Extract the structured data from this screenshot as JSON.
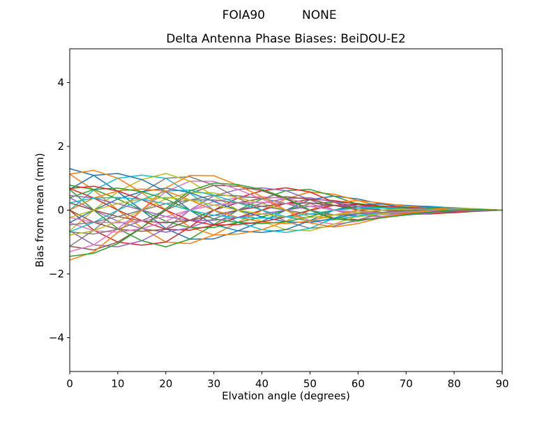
{
  "chart_data": {
    "type": "line",
    "suptitle": [
      "FOIA90",
      "NONE"
    ],
    "title": "Delta Antenna Phase Biases: BeiDOU-E2",
    "xlabel": "Elvation angle (degrees)",
    "ylabel": "Bias from mean (mm)",
    "xlim": [
      0,
      90
    ],
    "ylim": [
      -5.06,
      5.06
    ],
    "xticks": [
      0,
      10,
      20,
      30,
      40,
      50,
      60,
      70,
      80,
      90
    ],
    "yticks": [
      -4,
      -2,
      0,
      2,
      4
    ],
    "grid": false,
    "legend": false,
    "axis_color": "#000000",
    "background": "#ffffff",
    "palette": [
      "#1f77b4",
      "#ff7f0e",
      "#2ca02c",
      "#d62728",
      "#9467bd",
      "#8c564b",
      "#e377c2",
      "#7f7f7f",
      "#bcbd22",
      "#17becf"
    ],
    "x": [
      0,
      5,
      10,
      15,
      20,
      25,
      30,
      35,
      40,
      45,
      50,
      55,
      60,
      65,
      70,
      75,
      80,
      85,
      90
    ],
    "series": [
      {
        "color": "#1f77b4",
        "values": [
          1.3,
          1.09,
          0.58,
          0.0,
          -0.58,
          -0.91,
          -0.9,
          -0.65,
          -0.35,
          0.0,
          0.33,
          0.44,
          0.35,
          0.19,
          0.08,
          0.0,
          -0.04,
          -0.03,
          0.0
        ]
      },
      {
        "color": "#ff7f0e",
        "values": [
          1.13,
          0.63,
          0.0,
          -0.55,
          -1.0,
          -1.05,
          -0.78,
          -0.38,
          0.0,
          0.35,
          0.57,
          0.5,
          0.3,
          0.11,
          0.0,
          -0.06,
          -0.07,
          -0.04,
          0.0
        ]
      },
      {
        "color": "#2ca02c",
        "values": [
          0.65,
          0.0,
          -0.58,
          -0.96,
          -1.15,
          -0.91,
          -0.45,
          0.0,
          0.35,
          0.61,
          0.65,
          0.44,
          0.18,
          0.0,
          -0.08,
          -0.1,
          -0.08,
          -0.03,
          0.0
        ]
      },
      {
        "color": "#d62728",
        "values": [
          0.0,
          -0.63,
          -1.0,
          -1.1,
          -1.0,
          -0.53,
          0.0,
          0.38,
          0.61,
          0.7,
          0.57,
          0.25,
          0.0,
          -0.11,
          -0.13,
          -0.12,
          -0.07,
          -0.02,
          0.0
        ]
      },
      {
        "color": "#9467bd",
        "values": [
          -0.65,
          -1.09,
          -1.15,
          -0.96,
          -0.58,
          0.0,
          0.45,
          0.65,
          0.7,
          0.61,
          0.33,
          0.0,
          -0.18,
          -0.19,
          -0.15,
          -0.1,
          -0.04,
          0.0,
          0.0
        ]
      },
      {
        "color": "#8c564b",
        "values": [
          -1.13,
          -1.25,
          -1.0,
          -0.55,
          0.0,
          0.53,
          0.78,
          0.75,
          0.61,
          0.35,
          0.0,
          -0.25,
          -0.3,
          -0.22,
          -0.13,
          -0.06,
          0.0,
          0.02,
          0.0
        ]
      },
      {
        "color": "#e377c2",
        "values": [
          -1.3,
          -1.09,
          -0.58,
          0.0,
          0.58,
          0.91,
          0.9,
          0.65,
          0.35,
          0.0,
          -0.33,
          -0.44,
          -0.35,
          -0.19,
          -0.08,
          0.0,
          0.04,
          0.03,
          0.0
        ]
      },
      {
        "color": "#7f7f7f",
        "values": [
          -1.13,
          -0.63,
          0.0,
          0.55,
          1.0,
          1.05,
          0.78,
          0.38,
          0.0,
          -0.35,
          -0.57,
          -0.5,
          -0.3,
          -0.11,
          0.0,
          0.06,
          0.07,
          0.04,
          0.0
        ]
      },
      {
        "color": "#bcbd22",
        "values": [
          -0.65,
          0.0,
          0.58,
          0.96,
          1.15,
          0.91,
          0.45,
          0.0,
          -0.35,
          -0.61,
          -0.65,
          -0.44,
          -0.18,
          0.0,
          0.08,
          0.1,
          0.08,
          0.03,
          0.0
        ]
      },
      {
        "color": "#17becf",
        "values": [
          0.0,
          0.63,
          1.0,
          1.1,
          1.0,
          0.53,
          0.0,
          -0.38,
          -0.61,
          -0.7,
          -0.57,
          -0.25,
          0.0,
          0.11,
          0.13,
          0.12,
          0.07,
          0.02,
          0.0
        ]
      },
      {
        "color": "#1f77b4",
        "values": [
          0.65,
          1.09,
          1.15,
          0.96,
          0.58,
          0.0,
          -0.45,
          -0.65,
          -0.7,
          -0.61,
          -0.33,
          0.0,
          0.18,
          0.19,
          0.15,
          0.1,
          0.04,
          0.0,
          0.0
        ]
      },
      {
        "color": "#ff7f0e",
        "values": [
          1.13,
          1.25,
          1.0,
          0.55,
          0.0,
          -0.53,
          -0.78,
          -0.75,
          -0.61,
          -0.35,
          0.0,
          0.25,
          0.3,
          0.22,
          0.13,
          0.06,
          0.0,
          -0.02,
          0.0
        ]
      },
      {
        "color": "#2ca02c",
        "values": [
          0.78,
          0.65,
          0.35,
          0.0,
          -0.35,
          -0.55,
          -0.54,
          -0.39,
          -0.21,
          0.0,
          0.2,
          0.26,
          0.21,
          0.11,
          0.05,
          0.0,
          -0.02,
          -0.02,
          0.0
        ]
      },
      {
        "color": "#d62728",
        "values": [
          0.68,
          0.38,
          0.0,
          -0.33,
          -0.6,
          -0.63,
          -0.47,
          -0.23,
          0.0,
          0.21,
          0.34,
          0.3,
          0.18,
          0.07,
          0.0,
          -0.04,
          -0.04,
          -0.02,
          0.0
        ]
      },
      {
        "color": "#9467bd",
        "values": [
          0.39,
          0.0,
          -0.35,
          -0.58,
          -0.69,
          -0.55,
          -0.27,
          0.0,
          0.21,
          0.37,
          0.39,
          0.26,
          0.11,
          0.0,
          -0.05,
          -0.06,
          -0.05,
          -0.02,
          0.0
        ]
      },
      {
        "color": "#8c564b",
        "values": [
          0.0,
          -0.38,
          -0.6,
          -0.66,
          -0.6,
          -0.32,
          0.0,
          0.23,
          0.37,
          0.42,
          0.34,
          0.15,
          0.0,
          -0.07,
          -0.08,
          -0.07,
          -0.04,
          -0.01,
          0.0
        ]
      },
      {
        "color": "#e377c2",
        "values": [
          -0.39,
          -0.65,
          -0.69,
          -0.58,
          -0.35,
          0.0,
          0.27,
          0.39,
          0.42,
          0.37,
          0.2,
          0.0,
          -0.11,
          -0.11,
          -0.09,
          -0.06,
          -0.02,
          0.0,
          0.0
        ]
      },
      {
        "color": "#7f7f7f",
        "values": [
          -0.68,
          -0.75,
          -0.6,
          -0.33,
          0.0,
          0.32,
          0.47,
          0.45,
          0.37,
          0.21,
          0.0,
          -0.15,
          -0.18,
          -0.13,
          -0.08,
          -0.04,
          0.0,
          0.01,
          0.0
        ]
      },
      {
        "color": "#bcbd22",
        "values": [
          -0.78,
          -0.65,
          -0.35,
          0.0,
          0.35,
          0.55,
          0.54,
          0.39,
          0.21,
          0.0,
          -0.2,
          -0.26,
          -0.21,
          -0.11,
          -0.05,
          0.0,
          0.02,
          0.02,
          0.0
        ]
      },
      {
        "color": "#17becf",
        "values": [
          -0.68,
          -0.38,
          0.0,
          0.33,
          0.6,
          0.63,
          0.47,
          0.23,
          0.0,
          -0.21,
          -0.34,
          -0.3,
          -0.18,
          -0.07,
          0.0,
          0.04,
          0.04,
          0.02,
          0.0
        ]
      },
      {
        "color": "#1f77b4",
        "values": [
          -0.39,
          0.0,
          0.35,
          0.58,
          0.69,
          0.55,
          0.27,
          0.0,
          -0.21,
          -0.37,
          -0.39,
          -0.26,
          -0.11,
          0.0,
          0.05,
          0.06,
          0.05,
          0.02,
          0.0
        ]
      },
      {
        "color": "#ff7f0e",
        "values": [
          0.0,
          0.38,
          0.6,
          0.66,
          0.6,
          0.32,
          0.0,
          -0.23,
          -0.37,
          -0.42,
          -0.34,
          -0.15,
          0.0,
          0.07,
          0.08,
          0.07,
          0.04,
          0.01,
          0.0
        ]
      },
      {
        "color": "#2ca02c",
        "values": [
          0.39,
          0.65,
          0.69,
          0.58,
          0.35,
          0.0,
          -0.27,
          -0.39,
          -0.42,
          -0.37,
          -0.2,
          0.0,
          0.11,
          0.11,
          0.09,
          0.06,
          0.02,
          0.0,
          0.0
        ]
      },
      {
        "color": "#d62728",
        "values": [
          0.68,
          0.75,
          0.6,
          0.33,
          0.0,
          -0.32,
          -0.47,
          -0.45,
          -0.37,
          -0.21,
          0.0,
          0.15,
          0.18,
          0.13,
          0.08,
          0.04,
          0.0,
          -0.01,
          0.0
        ]
      },
      {
        "color": "#9467bd",
        "values": [
          0.46,
          0.38,
          0.2,
          0.0,
          -0.2,
          -0.32,
          -0.32,
          -0.23,
          -0.12,
          0.0,
          0.12,
          0.15,
          0.12,
          0.07,
          0.03,
          0.0,
          -0.01,
          -0.01,
          0.0
        ]
      },
      {
        "color": "#8c564b",
        "values": [
          0.23,
          0.0,
          -0.2,
          -0.34,
          -0.4,
          -0.32,
          -0.16,
          0.0,
          0.12,
          0.21,
          0.23,
          0.15,
          0.06,
          0.0,
          -0.03,
          -0.04,
          -0.03,
          -0.01,
          0.0
        ]
      },
      {
        "color": "#e377c2",
        "values": [
          -0.23,
          -0.38,
          -0.4,
          -0.34,
          -0.2,
          0.0,
          0.16,
          0.23,
          0.25,
          0.21,
          0.12,
          0.0,
          -0.06,
          -0.07,
          -0.05,
          -0.04,
          -0.01,
          0.0,
          0.0
        ]
      },
      {
        "color": "#7f7f7f",
        "values": [
          -0.46,
          -0.38,
          -0.2,
          0.0,
          0.2,
          0.32,
          0.32,
          0.23,
          0.12,
          0.0,
          -0.12,
          -0.15,
          -0.12,
          -0.07,
          -0.03,
          0.0,
          0.01,
          0.01,
          0.0
        ]
      },
      {
        "color": "#bcbd22",
        "values": [
          -0.23,
          0.0,
          0.2,
          0.34,
          0.4,
          0.32,
          0.16,
          0.0,
          -0.12,
          -0.21,
          -0.23,
          -0.15,
          -0.06,
          0.0,
          0.03,
          0.04,
          0.03,
          0.01,
          0.0
        ]
      },
      {
        "color": "#17becf",
        "values": [
          0.23,
          0.38,
          0.4,
          0.34,
          0.2,
          0.0,
          -0.16,
          -0.23,
          -0.25,
          -0.21,
          -0.12,
          0.0,
          0.06,
          0.07,
          0.05,
          0.04,
          0.01,
          0.0,
          0.0
        ]
      },
      {
        "color": "#ff7f0e",
        "values": [
          -1.56,
          -1.31,
          -0.7,
          0.0,
          0.7,
          1.09,
          1.08,
          0.78,
          0.42,
          0.0,
          -0.4,
          -0.53,
          -0.42,
          -0.23,
          -0.1,
          0.0,
          0.05,
          0.04,
          0.0
        ]
      },
      {
        "color": "#2ca02c",
        "values": [
          -1.45,
          -1.35,
          -1.05,
          -0.55,
          0.05,
          0.6,
          0.85,
          0.8,
          0.65,
          0.38,
          0.0,
          -0.28,
          -0.33,
          -0.24,
          -0.15,
          -0.06,
          0.0,
          0.02,
          0.0
        ]
      }
    ]
  }
}
